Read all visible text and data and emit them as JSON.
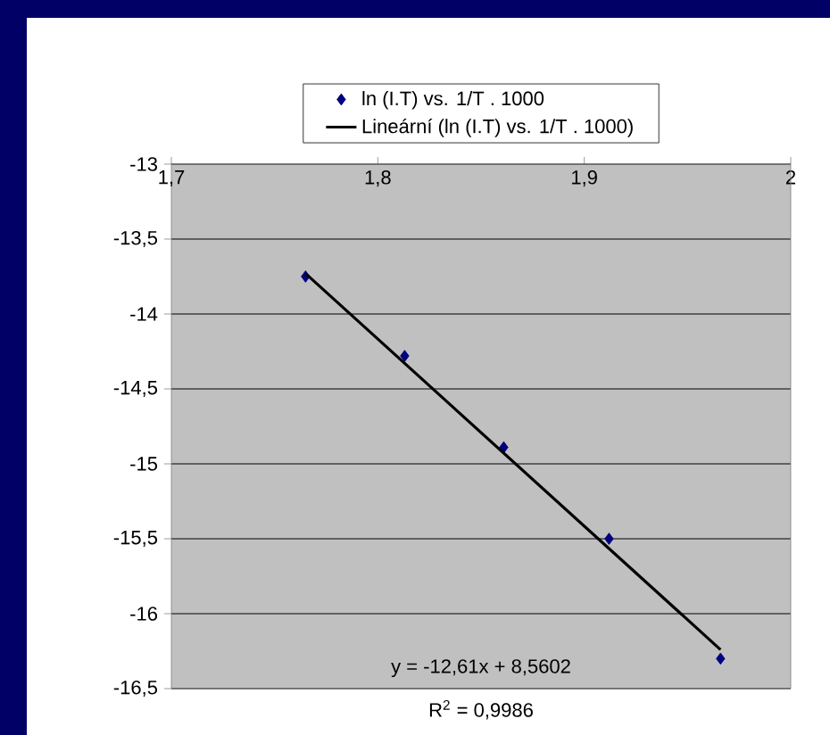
{
  "chart_data": {
    "type": "scatter",
    "xlim": [
      1.7,
      2
    ],
    "ylim": [
      -16.5,
      -13
    ],
    "xticks": [
      {
        "value": 1.7,
        "label": "1,7"
      },
      {
        "value": 1.8,
        "label": "1,8"
      },
      {
        "value": 1.9,
        "label": "1,9"
      },
      2
    ],
    "yticks": [
      -13,
      {
        "value": -13.5,
        "label": "-13,5"
      },
      -14,
      {
        "value": -14.5,
        "label": "-14,5"
      },
      -15,
      {
        "value": -15.5,
        "label": "-15,5"
      },
      -16,
      {
        "value": -16.5,
        "label": "-16,5"
      }
    ],
    "grid": "y",
    "legend": "top",
    "series": [
      {
        "name": "ln (I.T) vs. 1/T . 1000",
        "marker": "diamond",
        "color": "#000080",
        "x": [
          1.765,
          1.813,
          1.861,
          1.912,
          1.966
        ],
        "values": [
          -13.75,
          -14.28,
          -14.89,
          -15.5,
          -16.3
        ]
      },
      {
        "name": "Lineární (ln (I.T) vs. 1/T . 1000)",
        "type": "line",
        "color": "#000000",
        "line_style": "solid",
        "x": [
          1.765,
          1.966
        ],
        "values": [
          -13.73,
          -16.24
        ]
      }
    ],
    "annotations": [
      "y = -12,61x + 8,5602",
      "R$^{2}$ = 0,9986"
    ]
  }
}
